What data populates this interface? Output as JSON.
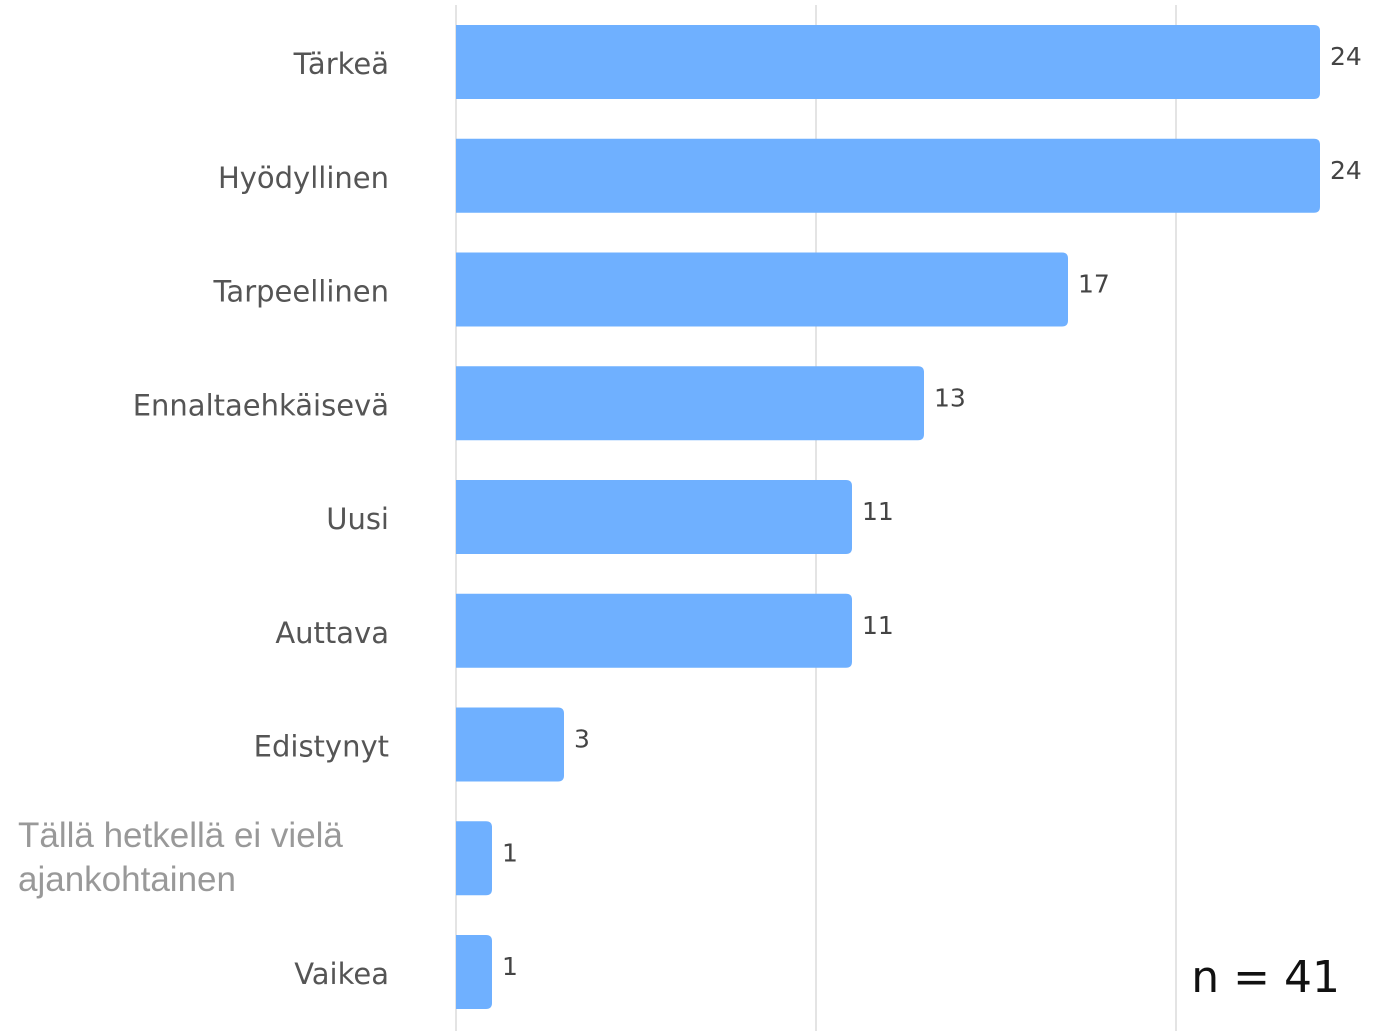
{
  "chart_data": {
    "type": "bar",
    "orientation": "horizontal",
    "categories": [
      "Tärkeä",
      "Hyödyllinen",
      "Tarpeellinen",
      "Ennaltaehkäisevä",
      "Uusi",
      "Auttava",
      "Edistynyt",
      "Tällä hetkellä ei vielä ajankohtainen",
      "Vaikea"
    ],
    "values": [
      24,
      24,
      17,
      13,
      11,
      11,
      3,
      1,
      1
    ],
    "color": "#6fb0ff",
    "xlim": [
      0,
      25
    ],
    "xticks": [
      0,
      10,
      20
    ],
    "grid": true,
    "annotation": "n = 41"
  }
}
